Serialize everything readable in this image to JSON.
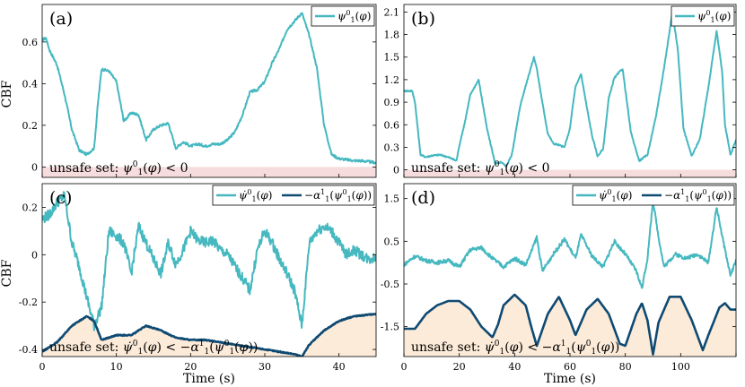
{
  "figure": {
    "ylabel": "CBF",
    "xlabel": "Time (s)"
  },
  "colors": {
    "series_teal": "#45b8c0",
    "series_navy": "#0f4a73",
    "unsafe_pink": "#f6dcdc",
    "unsafe_peach": "#fcebd9",
    "axis": "#000000"
  },
  "chart_data": [
    {
      "id": "a",
      "type": "line",
      "panel_label": "(a)",
      "xlim": [
        0,
        45
      ],
      "ylim": [
        -0.05,
        0.78
      ],
      "xticks": [],
      "yticks": [
        0,
        0.2,
        0.4,
        0.6
      ],
      "ytick_labels": [
        "0",
        "0.2",
        "0.4",
        "0.6"
      ],
      "xlabel": "",
      "ylabel": "CBF",
      "legend_position": "top-right",
      "unsafe_region": {
        "from": -0.05,
        "to": 0,
        "label": "unsafe set: ψ₁⁰(φ) < 0",
        "color": "unsafe_pink"
      },
      "series": [
        {
          "name": "ψ₁⁰(φ)",
          "color": "series_teal",
          "noise": 0.006,
          "x": [
            0,
            0.5,
            1,
            2,
            3,
            4,
            5,
            6,
            7,
            7.5,
            8,
            9,
            10,
            11,
            12,
            13,
            14,
            15,
            16,
            17,
            18,
            19,
            20,
            21,
            22,
            23,
            24,
            25,
            26,
            27,
            28,
            29,
            30,
            31,
            32,
            33,
            34,
            35,
            36,
            37,
            38,
            39,
            40,
            41,
            42,
            43,
            44,
            45
          ],
          "values": [
            0.61,
            0.62,
            0.56,
            0.49,
            0.35,
            0.18,
            0.08,
            0.06,
            0.09,
            0.3,
            0.47,
            0.46,
            0.41,
            0.22,
            0.26,
            0.25,
            0.13,
            0.18,
            0.2,
            0.21,
            0.09,
            0.12,
            0.1,
            0.11,
            0.1,
            0.11,
            0.11,
            0.13,
            0.17,
            0.25,
            0.36,
            0.37,
            0.41,
            0.5,
            0.57,
            0.66,
            0.7,
            0.74,
            0.63,
            0.48,
            0.2,
            0.06,
            0.04,
            0.035,
            0.03,
            0.03,
            0.025,
            0.02
          ]
        }
      ]
    },
    {
      "id": "b",
      "type": "line",
      "panel_label": "(b)",
      "xlim": [
        0,
        120
      ],
      "ylim": [
        -0.1,
        2.2
      ],
      "xticks": [],
      "yticks": [
        0,
        0.3,
        0.6,
        0.9,
        1.2,
        1.5,
        1.8,
        2.1
      ],
      "ytick_labels": [
        "0",
        "0.3",
        "0.6",
        "0.9",
        "1.2",
        "1.5",
        "1.8",
        "2.1"
      ],
      "xlabel": "",
      "ylabel": "",
      "legend_position": "top-right",
      "unsafe_region": {
        "from": -0.1,
        "to": 0,
        "label": "unsafe set: ψ₁⁰(φ) < 0",
        "color": "unsafe_pink"
      },
      "series": [
        {
          "name": "ψ₁⁰(φ)",
          "color": "series_teal",
          "noise": 0.01,
          "x": [
            0,
            3,
            4,
            6,
            8,
            10,
            13,
            16,
            19,
            20,
            22,
            24,
            27,
            30,
            33,
            35,
            37,
            39,
            42,
            45,
            47,
            48,
            50,
            52,
            54,
            56,
            58,
            60,
            61,
            62,
            64,
            66,
            68,
            70,
            72,
            74,
            76,
            79,
            82,
            85,
            88,
            91,
            94,
            97,
            99,
            101,
            104,
            107,
            110,
            113,
            115,
            116,
            118,
            120
          ],
          "values": [
            1.05,
            1.05,
            0.9,
            0.2,
            0.17,
            0.19,
            0.2,
            0.17,
            0.12,
            0.32,
            0.63,
            1.0,
            1.2,
            0.55,
            0.08,
            0.1,
            0.05,
            0.2,
            0.85,
            1.25,
            1.5,
            1.35,
            0.9,
            0.48,
            0.35,
            0.33,
            0.3,
            0.55,
            0.85,
            1.1,
            1.28,
            0.85,
            0.45,
            0.18,
            0.28,
            0.95,
            1.22,
            1.35,
            0.5,
            0.12,
            0.2,
            0.7,
            1.35,
            2.1,
            1.6,
            0.55,
            0.18,
            0.42,
            1.1,
            1.85,
            1.3,
            0.6,
            0.2,
            0.4
          ]
        }
      ]
    },
    {
      "id": "c",
      "type": "line",
      "panel_label": "(c)",
      "xlim": [
        0,
        45
      ],
      "ylim": [
        -0.43,
        0.3
      ],
      "xticks": [
        0,
        10,
        20,
        30,
        40
      ],
      "yticks": [
        -0.4,
        -0.2,
        0,
        0.2
      ],
      "ytick_labels": [
        "-0.4",
        "-0.2",
        "0",
        "0.2"
      ],
      "xlabel": "Time (s)",
      "ylabel": "CBF",
      "legend_position": "top-right",
      "unsafe_region": {
        "below_series": 1,
        "label": "unsafe set: ψ̇₁⁰(φ) < −α₁¹(ψ₁⁰(φ))",
        "color": "unsafe_peach"
      },
      "series": [
        {
          "name": "ψ̇₁⁰(φ)",
          "color": "series_teal",
          "noise": 0.022,
          "x": [
            0,
            1,
            2,
            3,
            4,
            5,
            6,
            7,
            8,
            9,
            10,
            11,
            12,
            13,
            14,
            15,
            16,
            17,
            18,
            19,
            20,
            21,
            22,
            23,
            24,
            25,
            26,
            27,
            28,
            29,
            30,
            31,
            32,
            33,
            34,
            35,
            36,
            37,
            38,
            39,
            40,
            41,
            42,
            43,
            44,
            45
          ],
          "values": [
            0.15,
            0.17,
            0.22,
            0.25,
            0.05,
            -0.05,
            -0.18,
            -0.3,
            -0.22,
            0.1,
            0.08,
            0.05,
            -0.08,
            0.12,
            0.05,
            -0.02,
            -0.08,
            0.05,
            -0.04,
            0.02,
            0.1,
            0.06,
            0.05,
            0.06,
            0.02,
            0.0,
            -0.05,
            -0.1,
            -0.15,
            0.02,
            0.1,
            0.05,
            -0.02,
            -0.08,
            -0.15,
            -0.3,
            0.05,
            0.1,
            0.12,
            0.1,
            0.05,
            0.0,
            0.02,
            0.0,
            -0.02,
            -0.01
          ]
        },
        {
          "name": "−α₁¹(ψ₁⁰(φ))",
          "color": "series_navy",
          "noise": 0.002,
          "x": [
            0,
            2,
            4,
            6,
            7,
            8,
            10,
            12,
            14,
            16,
            18,
            20,
            22,
            24,
            26,
            28,
            30,
            32,
            34,
            35,
            36,
            38,
            40,
            42,
            45
          ],
          "values": [
            -0.41,
            -0.37,
            -0.3,
            -0.26,
            -0.28,
            -0.36,
            -0.34,
            -0.34,
            -0.3,
            -0.32,
            -0.35,
            -0.36,
            -0.36,
            -0.37,
            -0.38,
            -0.39,
            -0.4,
            -0.41,
            -0.42,
            -0.43,
            -0.38,
            -0.32,
            -0.28,
            -0.26,
            -0.25
          ]
        }
      ]
    },
    {
      "id": "d",
      "type": "line",
      "panel_label": "(d)",
      "xlim": [
        0,
        120
      ],
      "ylim": [
        -2.2,
        1.85
      ],
      "xticks": [
        0,
        20,
        40,
        60,
        80,
        100
      ],
      "yticks": [
        -1.5,
        -0.5,
        0.5,
        1.5
      ],
      "ytick_labels": [
        "-1.5",
        "-0.5",
        "0.5",
        "1.5"
      ],
      "xlabel": "Time (s)",
      "ylabel": "",
      "legend_position": "top-right",
      "unsafe_region": {
        "below_series": 1,
        "label": "unsafe set: ψ̇₁⁰(φ) < −α₁¹(ψ₁⁰(φ))",
        "color": "unsafe_peach"
      },
      "series": [
        {
          "name": "ψ̇₁⁰(φ)",
          "color": "series_teal",
          "noise": 0.045,
          "x": [
            0,
            4,
            8,
            12,
            16,
            20,
            24,
            28,
            32,
            36,
            40,
            44,
            46,
            48,
            50,
            54,
            58,
            62,
            64,
            68,
            72,
            76,
            80,
            84,
            86,
            88,
            90,
            92,
            94,
            98,
            102,
            106,
            110,
            113,
            116,
            118,
            120
          ],
          "values": [
            -0.05,
            0.15,
            0.05,
            0.0,
            0.05,
            -0.1,
            0.3,
            0.35,
            0.1,
            -0.1,
            0.1,
            -0.05,
            0.25,
            0.6,
            -0.2,
            0.2,
            0.55,
            0.1,
            0.65,
            0.15,
            -0.1,
            0.5,
            0.2,
            -0.2,
            -0.6,
            0.1,
            1.45,
            0.6,
            -0.1,
            0.2,
            0.1,
            0.2,
            0.0,
            1.3,
            0.3,
            -0.3,
            0.05
          ]
        },
        {
          "name": "−α₁¹(ψ₁⁰(φ))",
          "color": "series_navy",
          "noise": 0.0,
          "x": [
            0,
            4,
            8,
            12,
            16,
            20,
            24,
            28,
            32,
            34,
            36,
            40,
            44,
            46,
            48,
            52,
            56,
            60,
            62,
            66,
            70,
            74,
            78,
            80,
            84,
            86,
            88,
            90,
            92,
            96,
            100,
            104,
            108,
            110,
            114,
            116,
            118,
            120
          ],
          "values": [
            -1.55,
            -1.55,
            -1.2,
            -1.0,
            -0.9,
            -0.9,
            -1.1,
            -1.5,
            -1.75,
            -1.45,
            -1.0,
            -0.75,
            -1.0,
            -1.5,
            -1.95,
            -1.2,
            -0.8,
            -1.35,
            -1.7,
            -1.1,
            -0.85,
            -1.2,
            -1.9,
            -1.95,
            -1.2,
            -0.95,
            -1.35,
            -2.15,
            -1.4,
            -0.8,
            -0.8,
            -1.35,
            -2.05,
            -1.7,
            -1.05,
            -0.95,
            -1.1,
            -1.1
          ]
        }
      ]
    }
  ]
}
